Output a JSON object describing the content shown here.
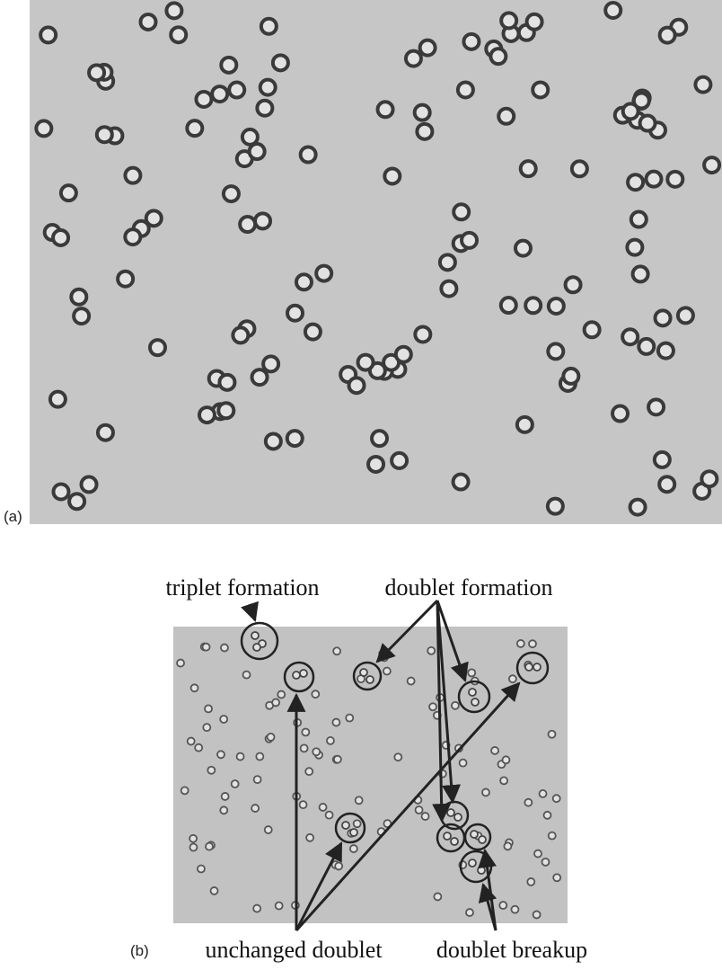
{
  "panel_a": {
    "label": "(a)"
  },
  "panel_b": {
    "label": "(b)",
    "annotations": [
      "triplet formation",
      "doublet formation",
      "unchanged doublet",
      "doublet breakup"
    ]
  }
}
